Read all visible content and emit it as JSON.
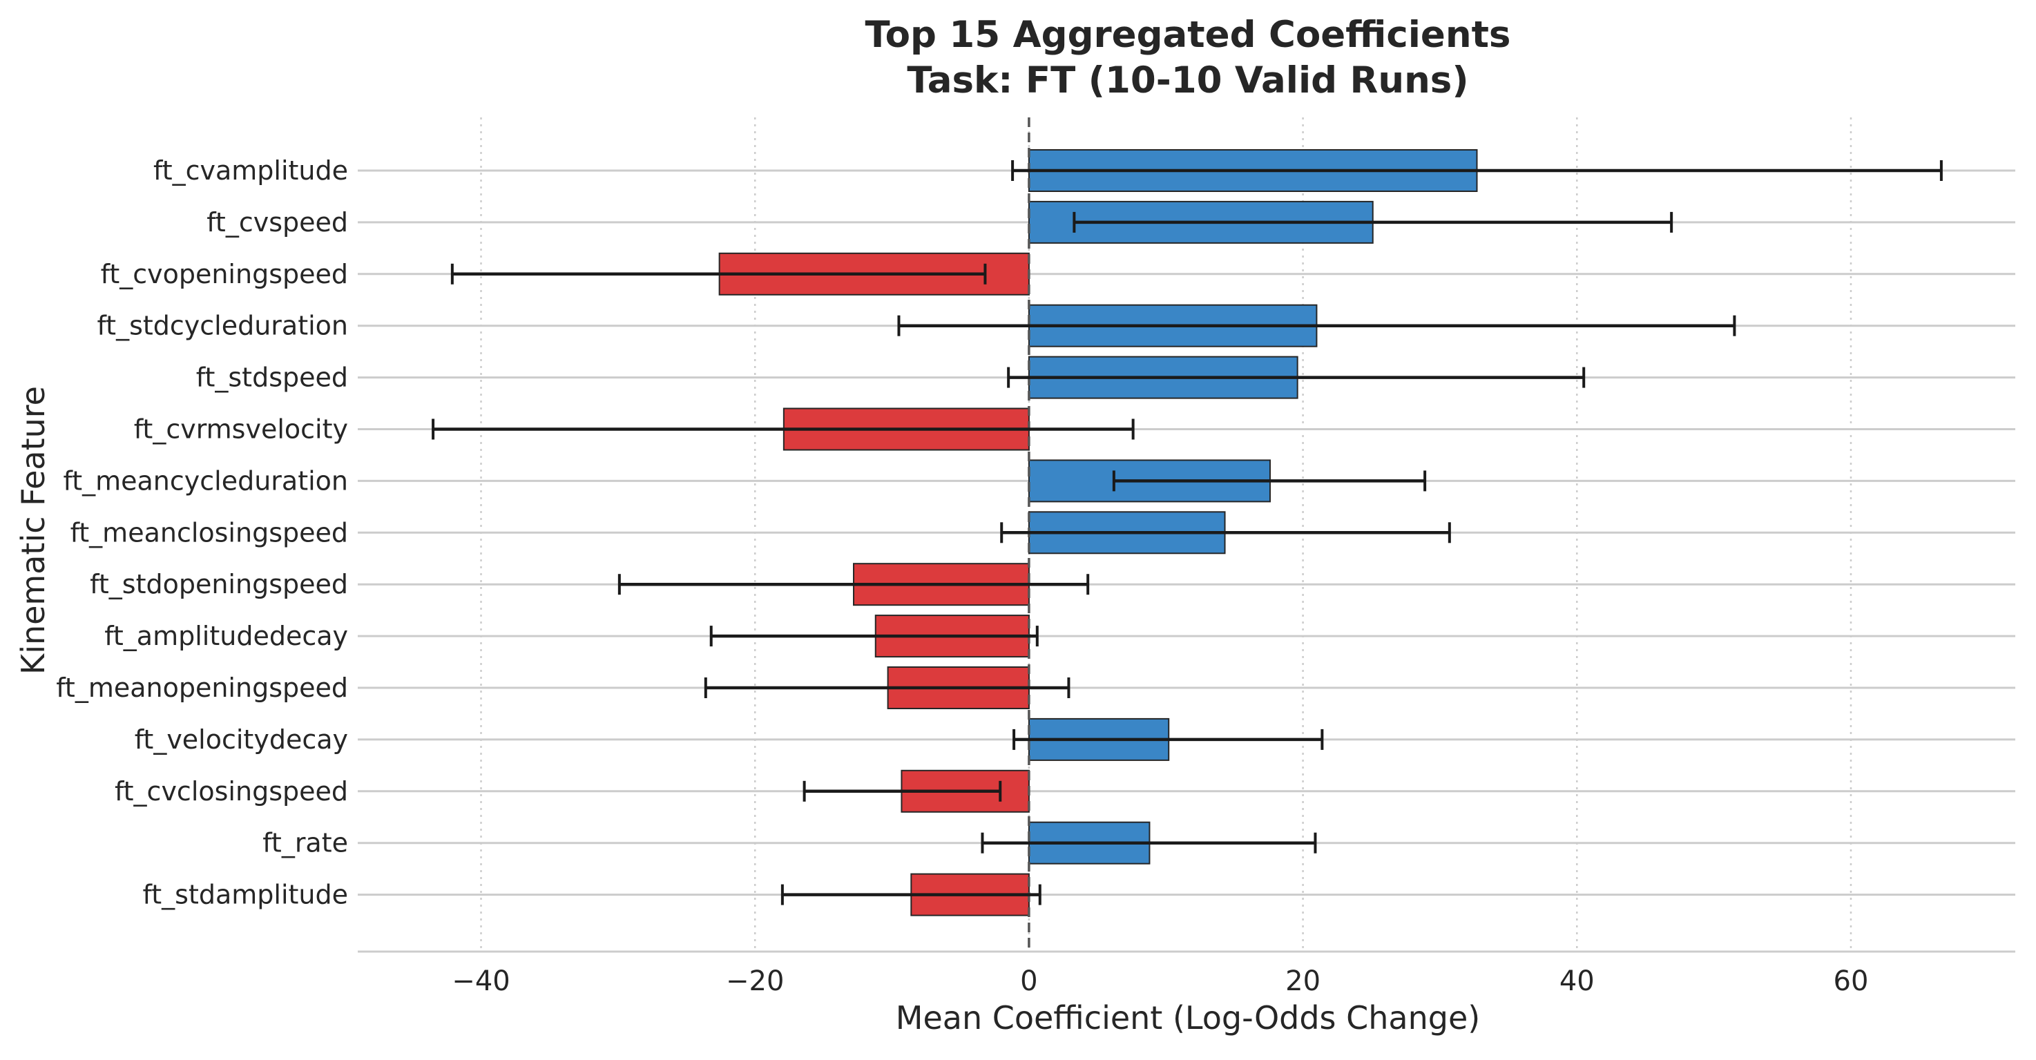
{
  "chart_data": {
    "type": "bar",
    "orientation": "horizontal",
    "title": [
      "Top 15 Aggregated Coefficients",
      "Task: FT (10-10 Valid Runs)"
    ],
    "xlabel": "Mean Coefficient (Log-Odds Change)",
    "ylabel": "Kinematic Feature",
    "xlim": [
      -49,
      72
    ],
    "xticks": [
      -40,
      -20,
      0,
      20,
      40,
      60
    ],
    "xtick_labels": [
      "−40",
      "−20",
      "0",
      "20",
      "40",
      "60"
    ],
    "grid": "x-dotted, y-solid",
    "zero_line": true,
    "colors": {
      "positive": "#3a86c6",
      "negative": "#dc3b3d",
      "edge": "#262626",
      "error_bar": "#1a1a1a",
      "grid": "#cccccc"
    },
    "categories": [
      "ft_cvamplitude",
      "ft_cvspeed",
      "ft_cvopeningspeed",
      "ft_stdcycleduration",
      "ft_stdspeed",
      "ft_cvrmsvelocity",
      "ft_meancycleduration",
      "ft_meanclosingspeed",
      "ft_stdopeningspeed",
      "ft_amplitudedecay",
      "ft_meanopeningspeed",
      "ft_velocitydecay",
      "ft_cvclosingspeed",
      "ft_rate",
      "ft_stdamplitude"
    ],
    "values": [
      32.7,
      25.1,
      -22.6,
      21.0,
      19.6,
      -17.9,
      17.6,
      14.3,
      -12.8,
      -11.2,
      -10.3,
      10.2,
      -9.3,
      8.8,
      -8.6
    ],
    "error_low": [
      -1.2,
      3.3,
      -42.1,
      -9.5,
      -1.5,
      -43.5,
      6.2,
      -2.0,
      -29.9,
      -23.2,
      -23.6,
      -1.1,
      -16.4,
      -3.4,
      -18.0
    ],
    "error_high": [
      66.6,
      46.9,
      -3.2,
      51.5,
      40.5,
      7.6,
      28.9,
      30.7,
      4.3,
      0.6,
      2.9,
      21.4,
      -2.1,
      20.9,
      0.8
    ]
  }
}
